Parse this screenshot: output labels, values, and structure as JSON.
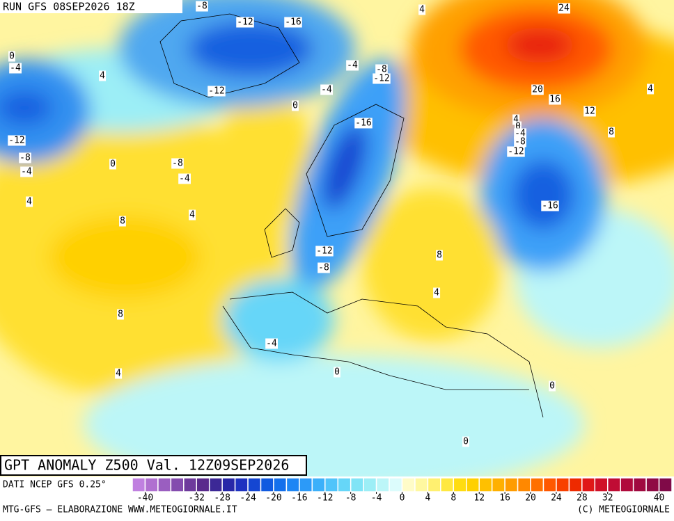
{
  "header": {
    "run": "RUN GFS 08SEP2026 18Z"
  },
  "title": "GPT ANOMALY Z500 Val. 12Z09SEP2026",
  "source": "DATI NCEP GFS 0.25°",
  "footer": {
    "left": "MTG-GFS — ELABORAZIONE WWW.METEOGIORNALE.IT",
    "right": "(C) METEOGIORNALE"
  },
  "colorbar": {
    "lim": [
      -42,
      42
    ],
    "colors": [
      "#c080e0",
      "#b070d0",
      "#9a5ec0",
      "#844cae",
      "#6e3a9c",
      "#5a2a8c",
      "#3c2896",
      "#2828a8",
      "#1e32c0",
      "#1446d2",
      "#105ae0",
      "#1470ec",
      "#1e86f4",
      "#2c9af8",
      "#3cb0fa",
      "#50c4fa",
      "#66d6f8",
      "#80e4f6",
      "#9ceef6",
      "#bcf6f8",
      "#dcfcfc",
      "#fffcc8",
      "#fff8a0",
      "#fff070",
      "#ffe840",
      "#ffdc10",
      "#ffd000",
      "#ffc000",
      "#ffb000",
      "#ff9c00",
      "#ff8800",
      "#ff7000",
      "#ff5800",
      "#f84000",
      "#ee2a00",
      "#e01818",
      "#d01028",
      "#c00c34",
      "#b00a3c",
      "#a00a40",
      "#900a44",
      "#800a48"
    ],
    "ticks": [
      -40,
      -32,
      -28,
      -24,
      -20,
      -16,
      -12,
      -8,
      -4,
      0,
      4,
      8,
      12,
      16,
      20,
      24,
      28,
      32,
      40
    ]
  },
  "contour_labels": [
    -8,
    -12,
    -16,
    4,
    24,
    0,
    -4,
    4,
    -4,
    -8,
    -12,
    -12,
    -4,
    20,
    16,
    4,
    0,
    12,
    -16,
    4,
    0,
    -4,
    -8,
    8,
    -12,
    -12,
    -8,
    0,
    -8,
    -4,
    -4,
    4,
    4,
    8,
    -16,
    -12,
    8,
    -8,
    4,
    8,
    -4,
    4,
    0,
    0,
    0
  ]
}
